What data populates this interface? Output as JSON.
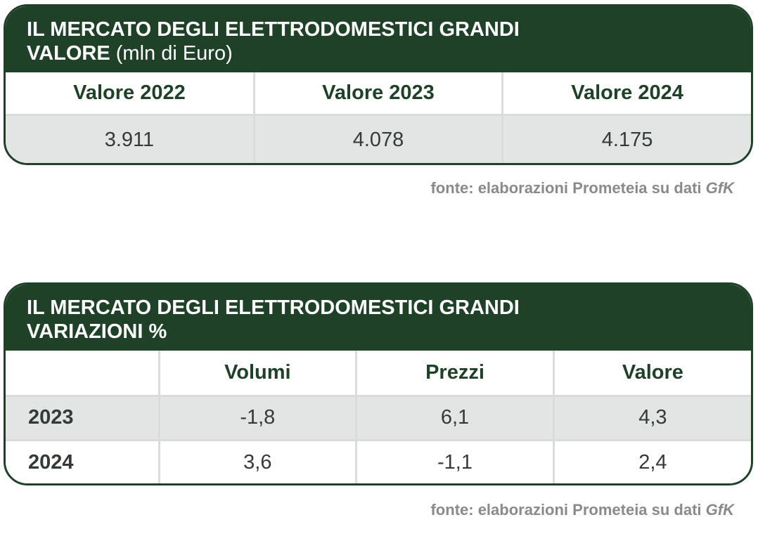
{
  "table1": {
    "title_line1": "IL MERCATO DEGLI ELETTRODOMESTICI GRANDI",
    "title_line2_bold": "VALORE",
    "title_line2_unit": "(mln di Euro)",
    "columns": [
      "Valore 2022",
      "Valore 2023",
      "Valore 2024"
    ],
    "values": [
      "3.911",
      "4.078",
      "4.175"
    ]
  },
  "table2": {
    "title_line1": "IL MERCATO DEGLI ELETTRODOMESTICI GRANDI",
    "title_line2": "VARIAZIONI %",
    "columns": [
      "Volumi",
      "Prezzi",
      "Valore"
    ],
    "rows": [
      {
        "label": "2023",
        "values": [
          "-1,8",
          "6,1",
          "4,3"
        ]
      },
      {
        "label": "2024",
        "values": [
          "3,6",
          "-1,1",
          "2,4"
        ]
      }
    ]
  },
  "source": {
    "text": "fonte: elaborazioni Prometeia su dati ",
    "brand": "GfK"
  }
}
